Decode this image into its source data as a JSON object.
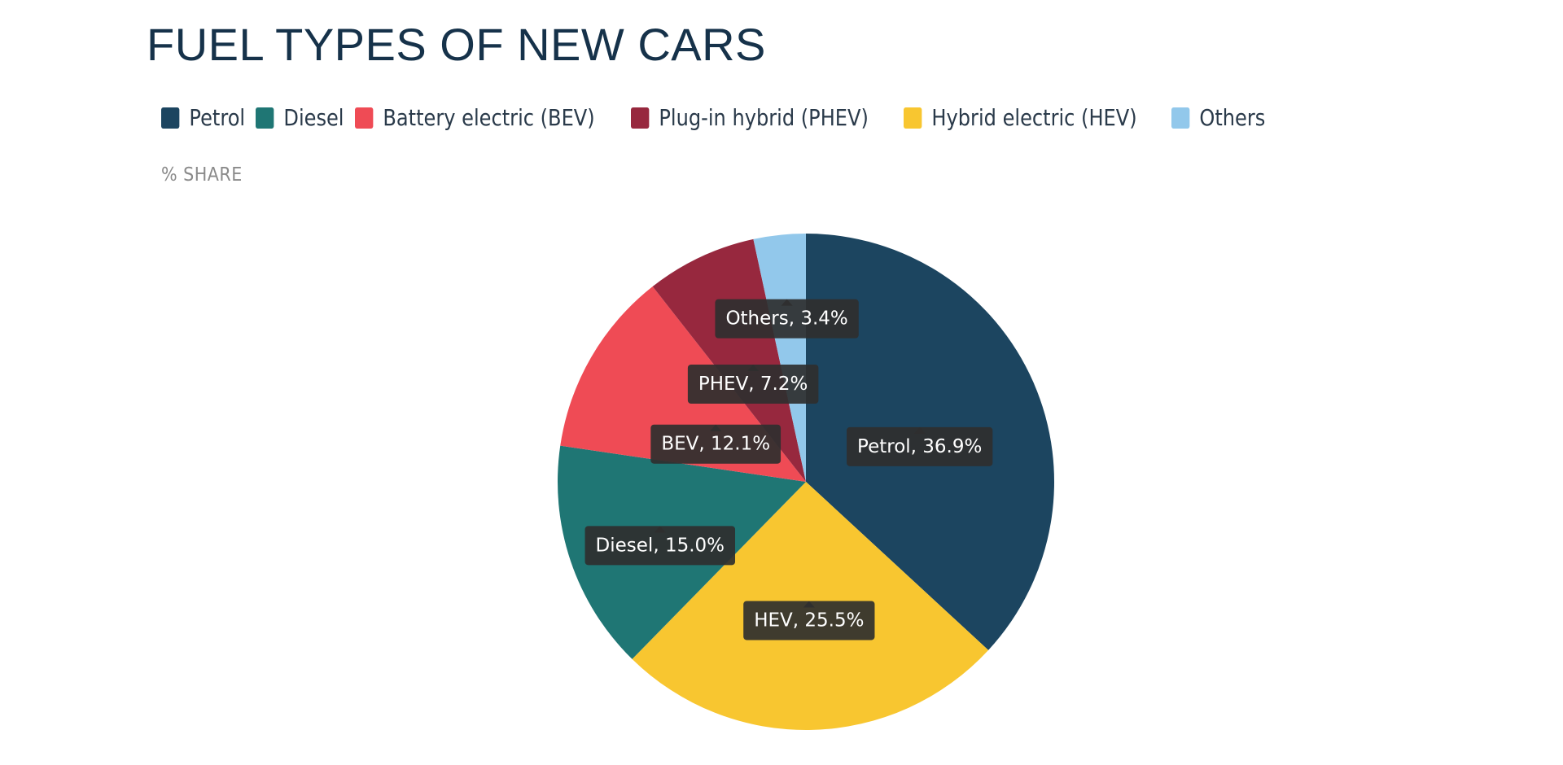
{
  "page": {
    "title": "FUEL TYPES OF NEW CARS",
    "unit_label": "% SHARE"
  },
  "legend": {
    "items": [
      {
        "label": "Petrol",
        "color": "#1c4560"
      },
      {
        "label": "Diesel",
        "color": "#1f7674"
      },
      {
        "label": "Battery electric (BEV)",
        "color": "#ef4b55"
      },
      {
        "label": "Plug-in hybrid (PHEV)",
        "color": "#97283e"
      },
      {
        "label": "Hybrid electric (HEV)",
        "color": "#f8c630"
      },
      {
        "label": "Others",
        "color": "#92c8eb"
      }
    ]
  },
  "chart_data": {
    "type": "pie",
    "title": "FUEL TYPES OF NEW CARS",
    "unit": "% SHARE",
    "legend_position": "top-left",
    "start": "12 o'clock, clockwise",
    "slices": [
      {
        "name": "Petrol",
        "value": 36.9,
        "label": "Petrol, 36.9%",
        "color": "#1c4560"
      },
      {
        "name": "Hybrid electric (HEV)",
        "value": 25.5,
        "label": "HEV, 25.5%",
        "color": "#f8c630"
      },
      {
        "name": "Diesel",
        "value": 15.0,
        "label": "Diesel, 15.0%",
        "color": "#1f7674"
      },
      {
        "name": "Battery electric (BEV)",
        "value": 12.1,
        "label": "BEV, 12.1%",
        "color": "#ef4b55"
      },
      {
        "name": "Plug-in hybrid (PHEV)",
        "value": 7.2,
        "label": "PHEV, 7.2%",
        "color": "#97283e"
      },
      {
        "name": "Others",
        "value": 3.4,
        "label": "Others, 3.4%",
        "color": "#92c8eb"
      }
    ]
  }
}
